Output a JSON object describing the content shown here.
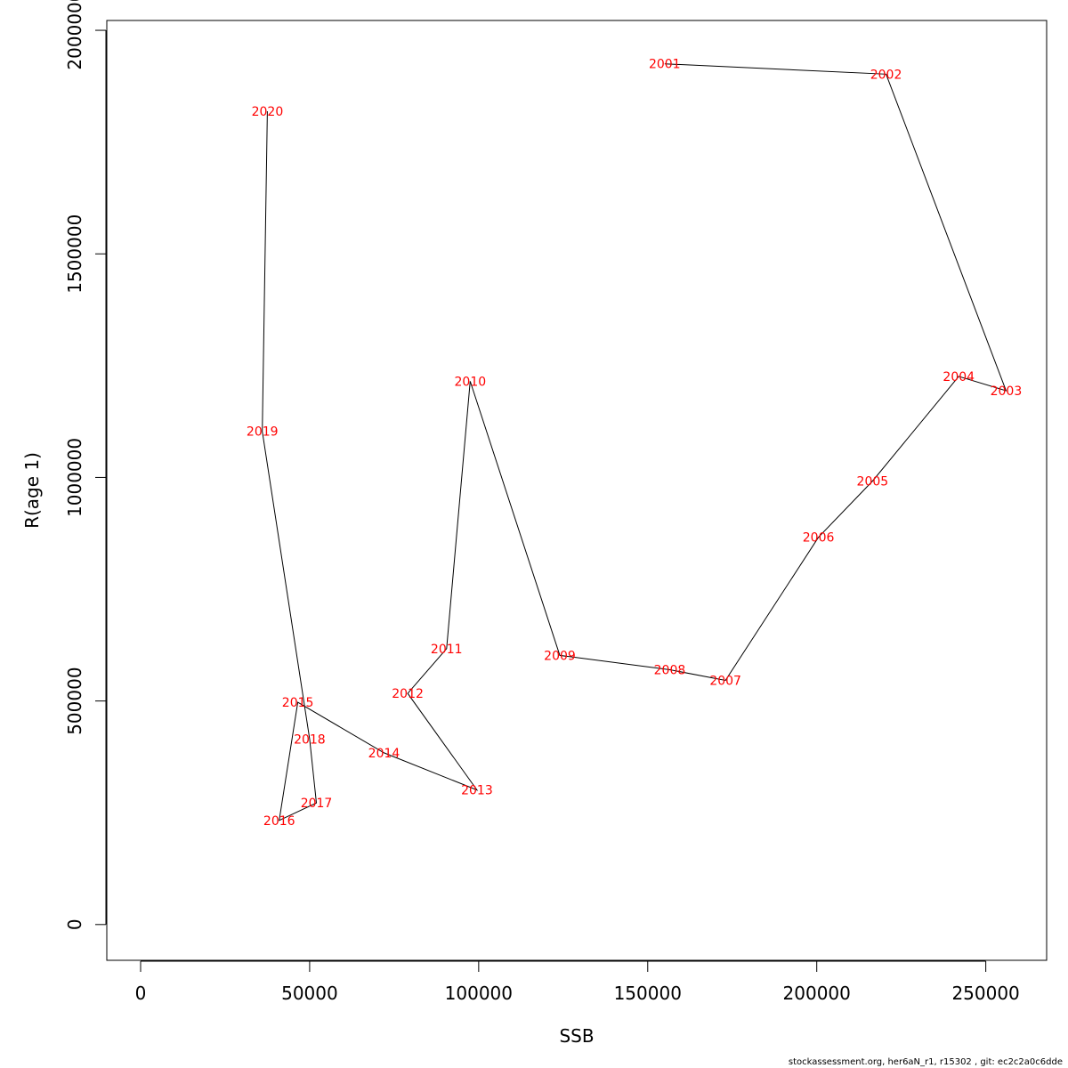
{
  "chart_data": {
    "type": "scatter",
    "title": "",
    "xlabel": "SSB",
    "ylabel": "R(age 1)",
    "xlim": [
      -10000,
      268000
    ],
    "ylim": [
      -80000,
      2022000
    ],
    "x_ticks": [
      0,
      50000,
      100000,
      150000,
      200000,
      250000
    ],
    "x_tick_labels": [
      "0",
      "50000",
      "100000",
      "150000",
      "200000",
      "250000"
    ],
    "y_ticks": [
      0,
      500000,
      1000000,
      1500000,
      2000000
    ],
    "y_tick_labels": [
      "0",
      "500000",
      "1000000",
      "1500000",
      "2000000"
    ],
    "grid": false,
    "legend": "none",
    "line_color": "#000000",
    "label_color": "#ff0000",
    "points": [
      {
        "label": "2001",
        "x": 155000,
        "y": 1925000
      },
      {
        "label": "2002",
        "x": 220500,
        "y": 1902000
      },
      {
        "label": "2003",
        "x": 256000,
        "y": 1194000
      },
      {
        "label": "2004",
        "x": 242000,
        "y": 1226000
      },
      {
        "label": "2005",
        "x": 216500,
        "y": 992000
      },
      {
        "label": "2006",
        "x": 200500,
        "y": 866000
      },
      {
        "label": "2007",
        "x": 173000,
        "y": 546000
      },
      {
        "label": "2008",
        "x": 156500,
        "y": 570000
      },
      {
        "label": "2009",
        "x": 124000,
        "y": 602000
      },
      {
        "label": "2010",
        "x": 97500,
        "y": 1215000
      },
      {
        "label": "2011",
        "x": 90500,
        "y": 617000
      },
      {
        "label": "2012",
        "x": 79000,
        "y": 517000
      },
      {
        "label": "2013",
        "x": 99500,
        "y": 301000
      },
      {
        "label": "2014",
        "x": 72000,
        "y": 384000
      },
      {
        "label": "2015",
        "x": 46500,
        "y": 497000
      },
      {
        "label": "2016",
        "x": 41000,
        "y": 233000
      },
      {
        "label": "2017",
        "x": 52000,
        "y": 272000
      },
      {
        "label": "2018",
        "x": 50000,
        "y": 415000
      },
      {
        "label": "2019",
        "x": 36000,
        "y": 1103000
      },
      {
        "label": "2020",
        "x": 37500,
        "y": 1819000
      }
    ]
  },
  "footer": {
    "text": "stockassessment.org, her6aN_r1, r15302 , git: ec2c2a0c6dde"
  }
}
